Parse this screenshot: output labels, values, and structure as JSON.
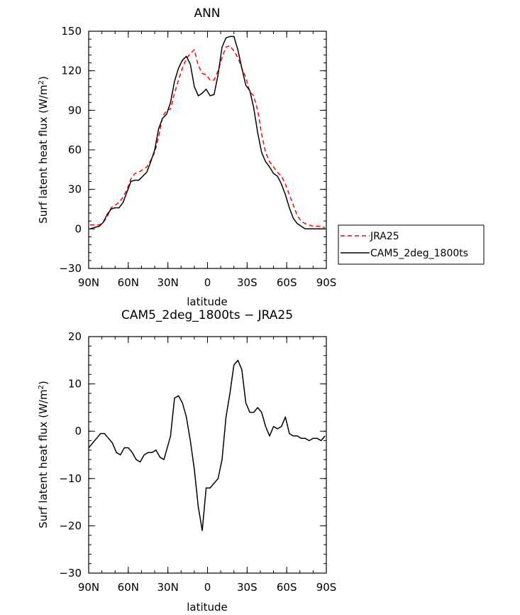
{
  "chart_data": [
    {
      "type": "line",
      "title": "ANN",
      "xlabel": "latitude",
      "ylabel_prefix": "Surf latent heat flux (W/m",
      "ylabel_sup": "2",
      "ylabel_suffix": ")",
      "xlim": [
        90,
        -90
      ],
      "ylim": [
        -30,
        150
      ],
      "x_ticks": [
        90,
        60,
        30,
        0,
        -30,
        -60,
        -90
      ],
      "x_tick_labels": [
        "90N",
        "60N",
        "30N",
        "0",
        "30S",
        "60S",
        "90S"
      ],
      "y_ticks": [
        -30,
        0,
        30,
        60,
        90,
        120,
        150
      ],
      "y_tick_labels": [
        "−30",
        "0",
        "30",
        "60",
        "90",
        "120",
        "150"
      ],
      "legend_position": "right",
      "series": [
        {
          "name": "JRA25",
          "color": "#ff0000",
          "dash": "dashed",
          "x": [
            89,
            86,
            82,
            79,
            76,
            73,
            70,
            67,
            64,
            61,
            58,
            55,
            52,
            49,
            46,
            43,
            40,
            37,
            34,
            31,
            28,
            25,
            22,
            19,
            16,
            13,
            10,
            7,
            4,
            1,
            -2,
            -5,
            -8,
            -11,
            -14,
            -17,
            -20,
            -23,
            -26,
            -29,
            -32,
            -35,
            -38,
            -41,
            -44,
            -47,
            -50,
            -53,
            -56,
            -59,
            -62,
            -65,
            -68,
            -71,
            -74,
            -77,
            -80,
            -83,
            -86,
            -89
          ],
          "y": [
            3,
            3,
            3,
            5,
            9,
            16,
            18,
            20,
            24,
            30,
            38,
            42,
            43,
            45,
            47,
            52,
            58,
            70,
            85,
            90,
            91,
            103,
            113,
            122,
            129,
            133,
            136,
            124,
            118,
            117,
            113,
            113,
            120,
            130,
            138,
            139,
            135,
            130,
            122,
            115,
            104,
            101,
            90,
            72,
            58,
            51,
            47,
            43,
            40,
            34,
            26,
            18,
            10,
            6,
            4,
            3,
            2,
            2,
            2,
            1
          ]
        },
        {
          "name": "CAM5_2deg_1800ts",
          "color": "#000000",
          "dash": "solid",
          "x": [
            89,
            86,
            82,
            79,
            76,
            73,
            70,
            67,
            64,
            61,
            58,
            55,
            52,
            49,
            46,
            43,
            40,
            37,
            34,
            31,
            28,
            25,
            22,
            19,
            16,
            13,
            10,
            7,
            4,
            1,
            -2,
            -5,
            -8,
            -11,
            -14,
            -17,
            -20,
            -23,
            -26,
            -29,
            -32,
            -35,
            -38,
            -41,
            -44,
            -47,
            -50,
            -53,
            -56,
            -59,
            -62,
            -65,
            -68,
            -71,
            -74,
            -77,
            -80,
            -83,
            -86,
            -89
          ],
          "y": [
            0,
            1,
            2,
            5,
            11,
            15,
            16,
            16,
            20,
            28,
            36,
            37,
            37,
            40,
            43,
            51,
            60,
            76,
            84,
            87,
            96,
            112,
            122,
            128,
            131,
            125,
            108,
            101,
            103,
            106,
            101,
            102,
            117,
            138,
            145,
            146,
            146,
            136,
            122,
            109,
            105,
            92,
            73,
            58,
            51,
            47,
            42,
            40,
            34,
            26,
            16,
            8,
            4,
            2,
            0,
            0,
            0,
            0,
            0,
            0
          ]
        }
      ]
    },
    {
      "type": "line",
      "title": "CAM5_2deg_1800ts − JRA25",
      "xlabel": "latitude",
      "ylabel_prefix": "Surf latent heat flux (W/m",
      "ylabel_sup": "2",
      "ylabel_suffix": ")",
      "xlim": [
        90,
        -90
      ],
      "ylim": [
        -30,
        20
      ],
      "x_ticks": [
        90,
        60,
        30,
        0,
        -30,
        -60,
        -90
      ],
      "x_tick_labels": [
        "90N",
        "60N",
        "30N",
        "0",
        "30S",
        "60S",
        "90S"
      ],
      "y_ticks": [
        -30,
        -20,
        -10,
        0,
        10,
        20
      ],
      "y_tick_labels": [
        "−30",
        "−20",
        "−10",
        "0",
        "10",
        "20"
      ],
      "series": [
        {
          "color": "#000000",
          "dash": "solid",
          "x": [
            90,
            87,
            84,
            81,
            78,
            75,
            72,
            69,
            66,
            63,
            60,
            57,
            54,
            51,
            48,
            45,
            42,
            39,
            36,
            33,
            30,
            28,
            25,
            22,
            19,
            16,
            13,
            10,
            7,
            4,
            1,
            -2,
            -5,
            -8,
            -11,
            -14,
            -17,
            -20,
            -23,
            -26,
            -29,
            -32,
            -35,
            -38,
            -41,
            -44,
            -47,
            -50,
            -53,
            -56,
            -59,
            -62,
            -65,
            -68,
            -71,
            -74,
            -77,
            -80,
            -83,
            -86,
            -89
          ],
          "y": [
            -3.5,
            -2.5,
            -1.5,
            -0.5,
            -0.5,
            -1.5,
            -2.5,
            -4.5,
            -5.0,
            -3.5,
            -3.5,
            -4.5,
            -6.0,
            -6.5,
            -5.0,
            -4.5,
            -4.5,
            -4.0,
            -5.5,
            -6.0,
            -3.0,
            -1.0,
            7.0,
            7.5,
            6.0,
            3.0,
            -2.0,
            -8.0,
            -16.0,
            -21.0,
            -12.0,
            -12.0,
            -11.0,
            -10.0,
            -6.0,
            3.0,
            8.0,
            14.0,
            15.0,
            13.0,
            6.0,
            4.0,
            4.0,
            5.0,
            4.0,
            1.0,
            -1.0,
            1.0,
            0.5,
            1.0,
            3.0,
            -0.5,
            -1.0,
            -1.0,
            -1.5,
            -1.5,
            -2.0,
            -1.5,
            -1.5,
            -2.0,
            -1.0
          ]
        }
      ]
    }
  ]
}
